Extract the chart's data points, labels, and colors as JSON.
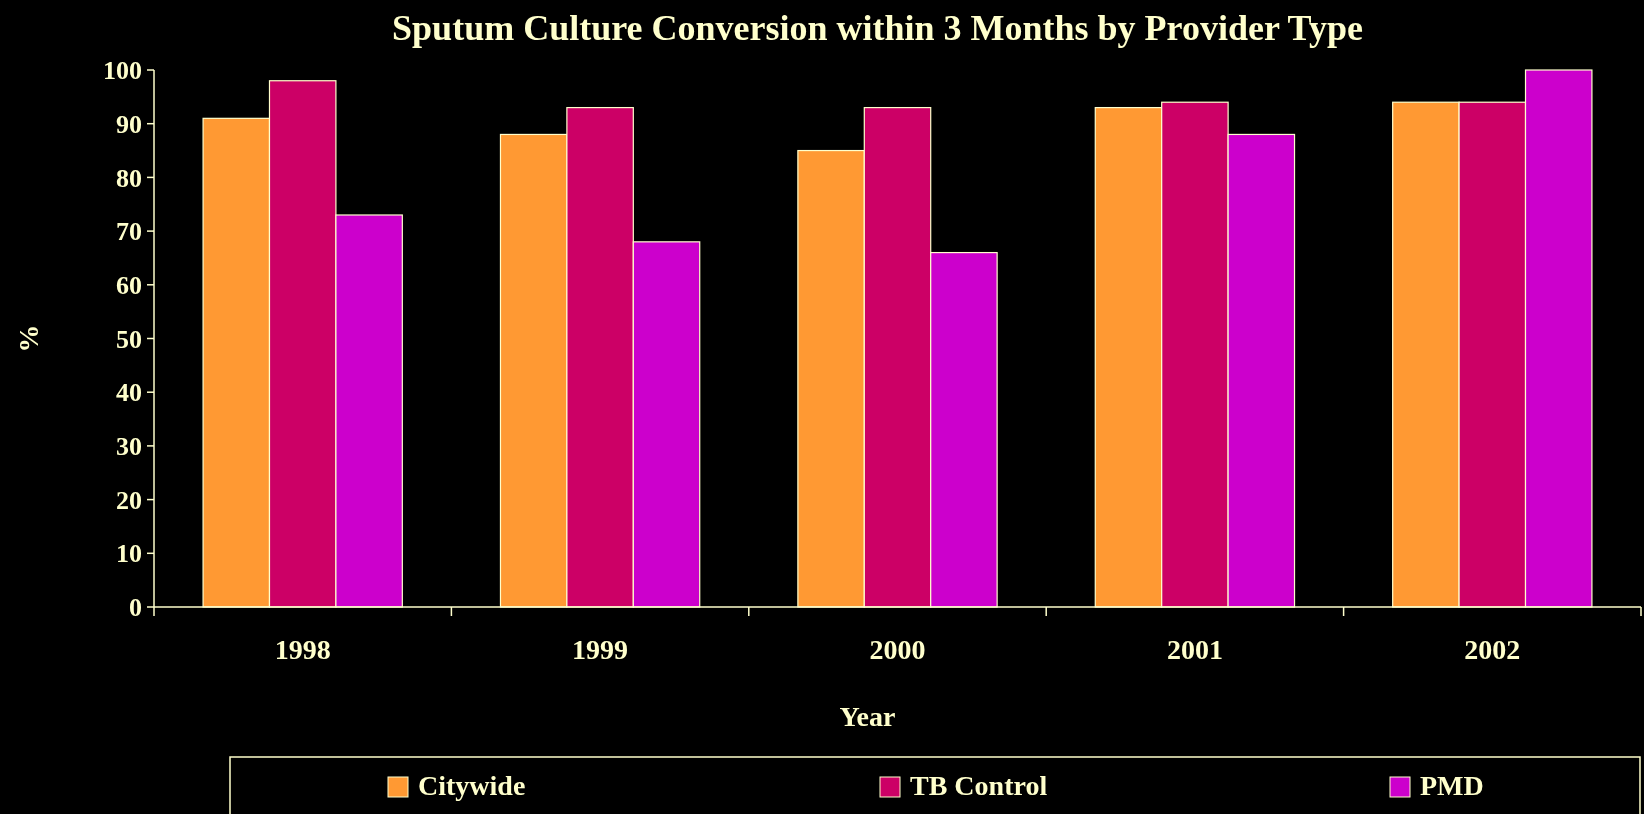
{
  "chart_data": {
    "type": "bar",
    "title": "Sputum Culture Conversion within 3 Months by Provider Type",
    "xlabel": "Year",
    "ylabel": "%",
    "categories": [
      "1998",
      "1999",
      "2000",
      "2001",
      "2002"
    ],
    "series": [
      {
        "name": "Citywide",
        "color": "#ff9933",
        "values": [
          91,
          88,
          85,
          93,
          94
        ]
      },
      {
        "name": "TB Control",
        "color": "#cc0066",
        "values": [
          98,
          93,
          93,
          94,
          94
        ]
      },
      {
        "name": "PMD",
        "color": "#cc00cc",
        "values": [
          73,
          68,
          66,
          88,
          100
        ]
      }
    ],
    "ylim": [
      0,
      100
    ],
    "yticks": [
      0,
      10,
      20,
      30,
      40,
      50,
      60,
      70,
      80,
      90,
      100
    ],
    "grid": false,
    "legend": "bottom"
  }
}
